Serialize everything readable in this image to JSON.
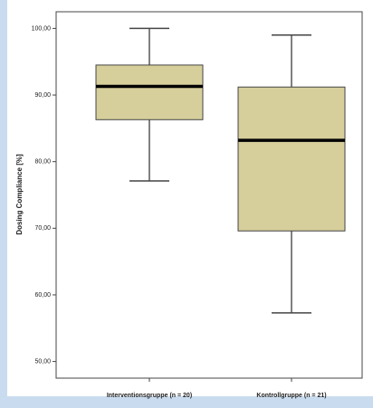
{
  "chart_data": {
    "type": "box",
    "y_label": "Dosing Compliance [%]",
    "categories": [
      "Interventionsgruppe (n = 20)",
      "Kontrollgruppe (n = 21)"
    ],
    "boxes": [
      {
        "whislo": 77.1,
        "q1": 86.3,
        "med": 91.3,
        "q3": 94.5,
        "whishi": 100
      },
      {
        "whislo": 57.3,
        "q1": 69.6,
        "med": 83.2,
        "q3": 91.2,
        "whishi": 99.0
      }
    ],
    "color": "#d6cf9c",
    "ylim": [
      47.5,
      102.5
    ],
    "yticks": [
      {
        "value": 50,
        "label": "50,00"
      },
      {
        "value": 60,
        "label": "60,00"
      },
      {
        "value": 70,
        "label": "70,00"
      },
      {
        "value": 80,
        "label": "80,00"
      },
      {
        "value": 90,
        "label": "90,00"
      },
      {
        "value": 100,
        "label": "100,00"
      }
    ]
  }
}
